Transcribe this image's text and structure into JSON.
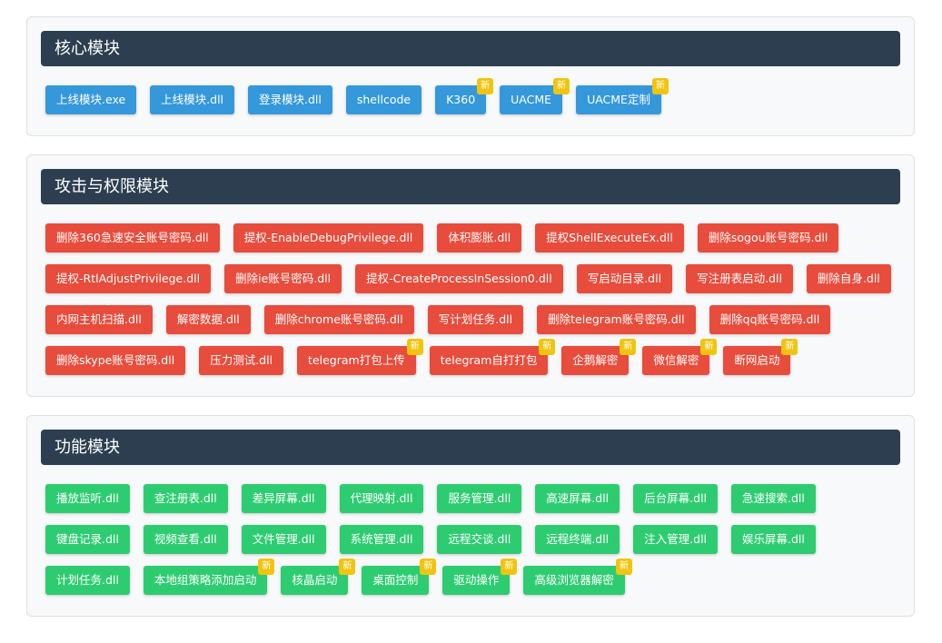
{
  "colors": {
    "core": "#3498db",
    "attack": "#e74c3c",
    "function": "#2ecc71",
    "header": "#2c3e50",
    "badge": "#f1c40f"
  },
  "new_badge": "新",
  "sections": [
    {
      "title": "核心模块",
      "color": "core",
      "items": [
        {
          "label": "上线模块.exe"
        },
        {
          "label": "上线模块.dll"
        },
        {
          "label": "登录模块.dll"
        },
        {
          "label": "shellcode"
        },
        {
          "label": "K360",
          "new": true
        },
        {
          "label": "UACME",
          "new": true
        },
        {
          "label": "UACME定制",
          "new": true
        }
      ]
    },
    {
      "title": "攻击与权限模块",
      "color": "attack",
      "items": [
        {
          "label": "删除360急速安全账号密码.dll"
        },
        {
          "label": "提权-EnableDebugPrivilege.dll"
        },
        {
          "label": "体积膨胀.dll"
        },
        {
          "label": "提权ShellExecuteEx.dll"
        },
        {
          "label": "删除sogou账号密码.dll"
        },
        {
          "label": "提权-RtlAdjustPrivilege.dll"
        },
        {
          "label": "删除ie账号密码.dll"
        },
        {
          "label": "提权-CreateProcessInSession0.dll"
        },
        {
          "label": "写启动目录.dll"
        },
        {
          "label": "写注册表启动.dll"
        },
        {
          "label": "删除自身.dll"
        },
        {
          "label": "内网主机扫描.dll"
        },
        {
          "label": "解密数据.dll"
        },
        {
          "label": "删除chrome账号密码.dll"
        },
        {
          "label": "写计划任务.dll"
        },
        {
          "label": "删除telegram账号密码.dll"
        },
        {
          "label": "删除qq账号密码.dll"
        },
        {
          "label": "删除skype账号密码.dll"
        },
        {
          "label": "压力测试.dll"
        },
        {
          "label": "telegram打包上传",
          "new": true
        },
        {
          "label": "telegram自打打包",
          "new": true
        },
        {
          "label": "企鹅解密",
          "new": true
        },
        {
          "label": "微信解密",
          "new": true
        },
        {
          "label": "断网启动",
          "new": true
        }
      ]
    },
    {
      "title": "功能模块",
      "color": "function",
      "items": [
        {
          "label": "播放监听.dll"
        },
        {
          "label": "查注册表.dll"
        },
        {
          "label": "差异屏幕.dll"
        },
        {
          "label": "代理映射.dll"
        },
        {
          "label": "服务管理.dll"
        },
        {
          "label": "高速屏幕.dll"
        },
        {
          "label": "后台屏幕.dll"
        },
        {
          "label": "急速搜索.dll"
        },
        {
          "label": "键盘记录.dll"
        },
        {
          "label": "视频查看.dll"
        },
        {
          "label": "文件管理.dll"
        },
        {
          "label": "系统管理.dll"
        },
        {
          "label": "远程交谈.dll"
        },
        {
          "label": "远程终端.dll"
        },
        {
          "label": "注入管理.dll"
        },
        {
          "label": "娱乐屏幕.dll"
        },
        {
          "label": "计划任务.dll"
        },
        {
          "label": "本地组策略添加启动",
          "new": true
        },
        {
          "label": "核晶启动",
          "new": true
        },
        {
          "label": "桌面控制",
          "new": true
        },
        {
          "label": "驱动操作",
          "new": true
        },
        {
          "label": "高级浏览器解密",
          "new": true
        }
      ]
    }
  ]
}
